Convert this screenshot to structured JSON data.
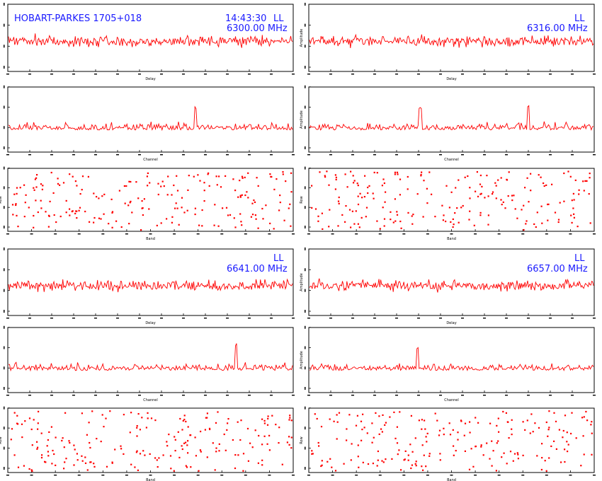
{
  "header": {
    "source": "HOBART-PARKES 1705+018",
    "time": "14:43:30",
    "pol": "LL"
  },
  "freqs": [
    "6300.00 MHz",
    "6316.00 MHz",
    "6641.00 MHz",
    "6657.00 MHz"
  ],
  "labels": {
    "delay": "Delay",
    "channel": "Channel",
    "amplitude": "Amplitude",
    "row": "Row",
    "band": "Band"
  },
  "colors": {
    "trace": "#ff0000",
    "annotation": "#1a1aff",
    "axis": "#000000"
  },
  "chart_data": [
    {
      "type": "line",
      "panel": "delay",
      "band": "6300.00 MHz",
      "pol": "LL",
      "xlabel": "Delay",
      "ylabel": "",
      "seed": 11,
      "peak": []
    },
    {
      "type": "line",
      "panel": "delay",
      "band": "6316.00 MHz",
      "pol": "LL",
      "xlabel": "Delay",
      "ylabel": "Amplitude",
      "seed": 23,
      "peak": []
    },
    {
      "type": "line",
      "panel": "channel",
      "band": "6300.00 MHz",
      "xlabel": "Channel",
      "ylabel": "",
      "seed": 37,
      "peak": [
        0.66
      ]
    },
    {
      "type": "line",
      "panel": "channel",
      "band": "6316.00 MHz",
      "xlabel": "Channel",
      "ylabel": "Amplitude",
      "seed": 41,
      "peak": [
        0.39,
        0.77
      ]
    },
    {
      "type": "scatter",
      "panel": "points",
      "band": "6300.00 MHz",
      "xlabel": "Band",
      "ylabel": "Row",
      "seed": 53
    },
    {
      "type": "scatter",
      "panel": "points",
      "band": "6316.00 MHz",
      "xlabel": "Band",
      "ylabel": "Row",
      "seed": 67
    },
    {
      "type": "line",
      "panel": "delay",
      "band": "6641.00 MHz",
      "pol": "LL",
      "xlabel": "Delay",
      "ylabel": "",
      "seed": 71,
      "peak": []
    },
    {
      "type": "line",
      "panel": "delay",
      "band": "6657.00 MHz",
      "pol": "LL",
      "xlabel": "Delay",
      "ylabel": "Amplitude",
      "seed": 83,
      "peak": []
    },
    {
      "type": "line",
      "panel": "channel",
      "band": "6641.00 MHz",
      "xlabel": "Channel",
      "ylabel": "",
      "seed": 97,
      "peak": [
        0.8
      ]
    },
    {
      "type": "line",
      "panel": "channel",
      "band": "6657.00 MHz",
      "xlabel": "Channel",
      "ylabel": "Amplitude",
      "seed": 101,
      "peak": [
        0.38
      ]
    },
    {
      "type": "scatter",
      "panel": "points",
      "band": "6641.00 MHz",
      "xlabel": "Band",
      "ylabel": "Row",
      "seed": 113
    },
    {
      "type": "scatter",
      "panel": "points",
      "band": "6657.00 MHz",
      "xlabel": "Band",
      "ylabel": "Row",
      "seed": 127
    }
  ]
}
